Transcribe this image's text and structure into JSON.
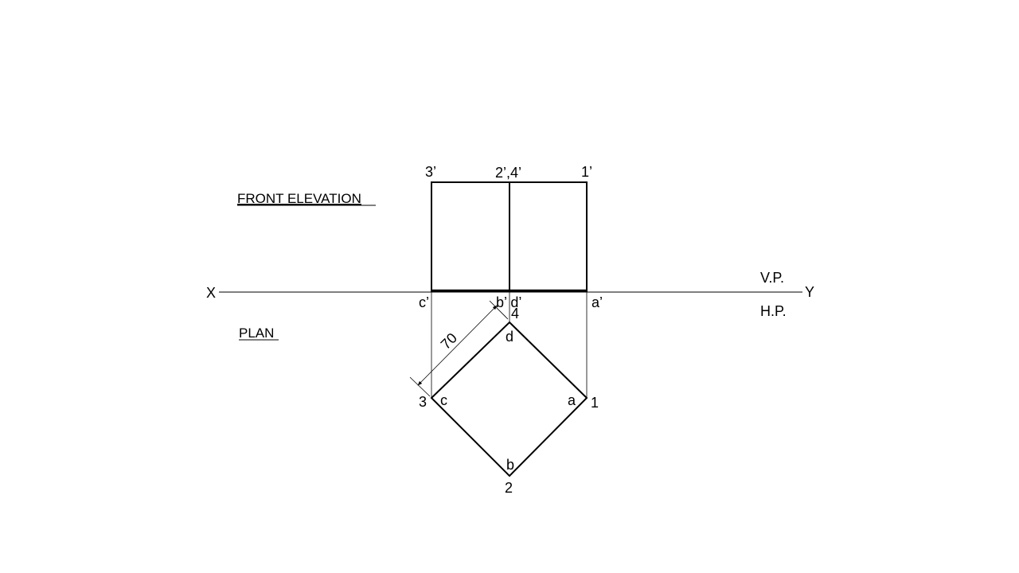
{
  "headings": {
    "front_elevation": "FRONT ELEVATION",
    "plan": "PLAN"
  },
  "reference_line": {
    "x_label": "X",
    "y_label": "Y",
    "vp_label": "V.P.",
    "hp_label": "H.P."
  },
  "elevation_labels": {
    "corner_left": "3’",
    "corner_middle": "2’,4’",
    "corner_right": "1’",
    "base_c": "c’",
    "base_bd": "b’ d’",
    "base_a": "a’"
  },
  "plan_labels": {
    "top_number": "4",
    "top_letter": "d",
    "left_number": "3",
    "left_letter": "c",
    "right_number": "1",
    "right_letter": "a",
    "bottom_letter": "b",
    "bottom_number": "2"
  },
  "dimension": {
    "value": "70"
  },
  "colors": {
    "line": "#000000",
    "background": "#ffffff"
  }
}
